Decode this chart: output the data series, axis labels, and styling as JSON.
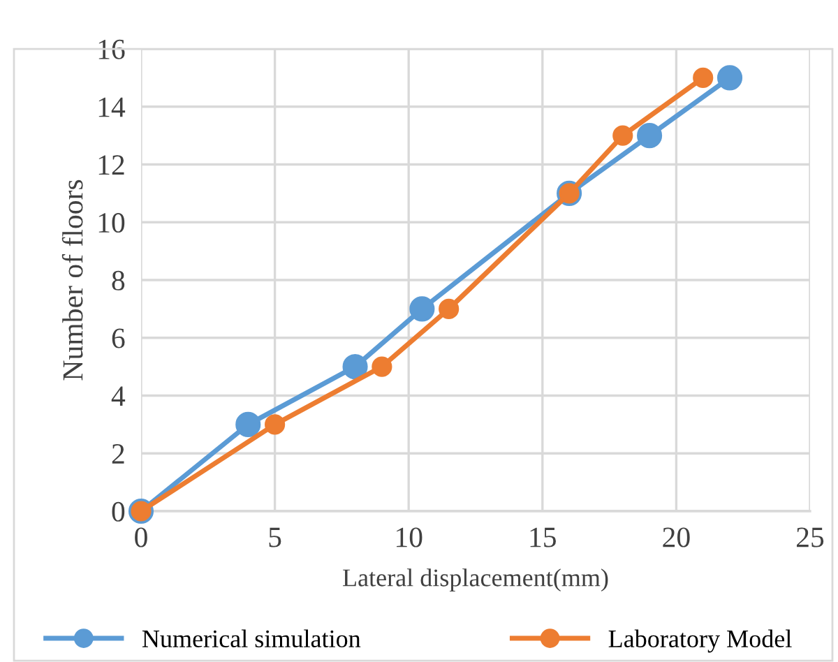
{
  "chart_data": {
    "type": "line",
    "xlabel": "Lateral displacement(mm)",
    "ylabel": "Number of floors",
    "xlim": [
      0,
      25
    ],
    "xticks": [
      0,
      5,
      10,
      15,
      20,
      25
    ],
    "ylim": [
      0,
      16
    ],
    "yticks": [
      0,
      2,
      4,
      6,
      8,
      10,
      12,
      14,
      16
    ],
    "grid": true,
    "legend": "bottom",
    "marker": "circle",
    "line_style": "solid",
    "series": [
      {
        "name": "Numerical simulation",
        "color": "#5b9bd5",
        "x": [
          0,
          4,
          8,
          10.5,
          16,
          19,
          22
        ],
        "values": [
          0,
          3,
          5,
          7,
          11,
          13,
          15
        ]
      },
      {
        "name": "Laboratory Model",
        "color": "#ed7d31",
        "x": [
          0,
          5,
          9,
          11.5,
          16,
          18,
          21
        ],
        "values": [
          0,
          3,
          5,
          7,
          11,
          13,
          15
        ]
      }
    ]
  }
}
